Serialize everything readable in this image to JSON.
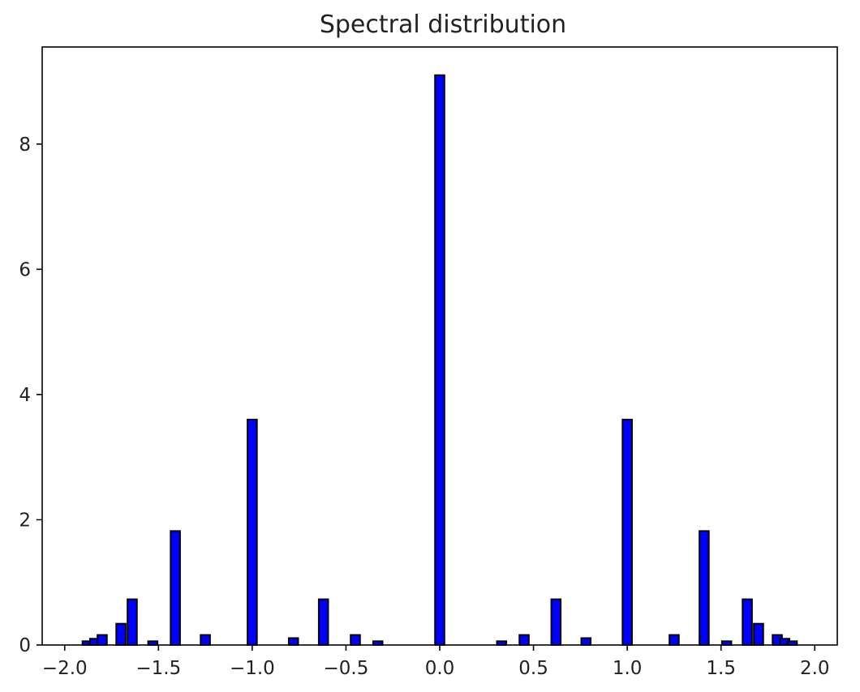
{
  "chart_data": {
    "type": "bar",
    "title": "Spectral distribution",
    "xlabel": "",
    "ylabel": "",
    "xlim": [
      -2.12,
      2.12
    ],
    "ylim": [
      0,
      9.55
    ],
    "grid": false,
    "x_ticks": [
      -2.0,
      -1.5,
      -1.0,
      -0.5,
      0.0,
      0.5,
      1.0,
      1.5,
      2.0
    ],
    "x_tick_labels": [
      "−2.0",
      "−1.5",
      "−1.0",
      "−0.5",
      "0.0",
      "0.5",
      "1.0",
      "1.5",
      "2.0"
    ],
    "y_ticks": [
      0,
      2,
      4,
      6,
      8
    ],
    "y_tick_labels": [
      "0",
      "2",
      "4",
      "6",
      "8"
    ],
    "bar_width": 0.05,
    "colors": {
      "bar_fill": "#0000ff",
      "bar_edge": "#000000",
      "axis": "#000000",
      "text": "#222222"
    },
    "x": [
      -1.88,
      -1.84,
      -1.8,
      -1.7,
      -1.64,
      -1.53,
      -1.41,
      -1.25,
      -1.0,
      -0.78,
      -0.62,
      -0.45,
      -0.33,
      0.0,
      0.33,
      0.45,
      0.62,
      0.78,
      1.0,
      1.25,
      1.41,
      1.53,
      1.64,
      1.7,
      1.8,
      1.84,
      1.88
    ],
    "values": [
      0.06,
      0.1,
      0.16,
      0.34,
      0.73,
      0.06,
      1.82,
      0.16,
      3.6,
      0.11,
      0.73,
      0.16,
      0.06,
      9.1,
      0.06,
      0.16,
      0.73,
      0.11,
      3.6,
      0.16,
      1.82,
      0.06,
      0.73,
      0.34,
      0.16,
      0.1,
      0.06
    ]
  }
}
